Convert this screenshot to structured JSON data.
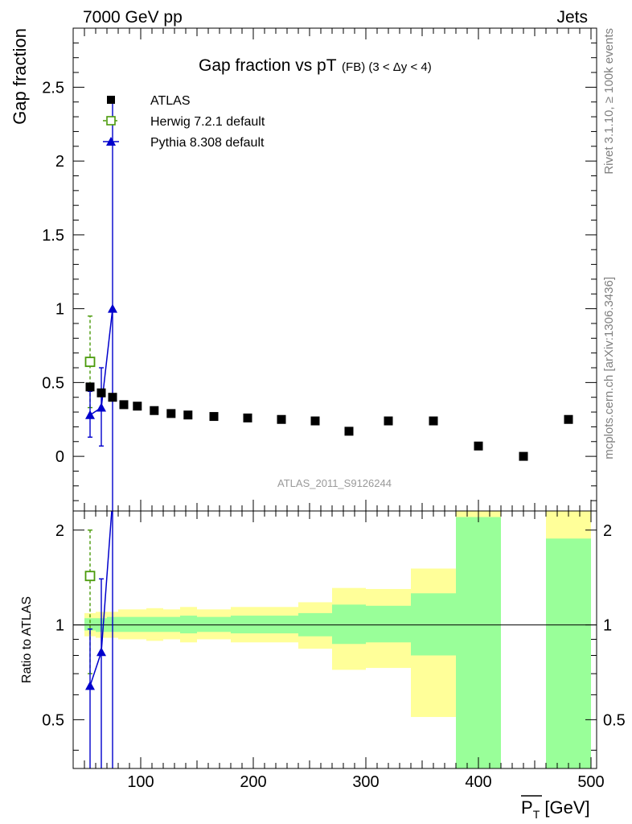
{
  "header": {
    "left": "7000 GeV pp",
    "right": "Jets"
  },
  "side_text": {
    "rivet": "Rivet 3.1.10, ≥ 100k events",
    "mcplots": "mcplots.cern.ch [arXiv:1306.3436]"
  },
  "chart_data": [
    {
      "type": "scatter",
      "title": "Gap fraction vs pT",
      "title_suffix": "(FB) (3 < Δy < 4)",
      "ylabel": "Gap fraction",
      "xlim": [
        40,
        505
      ],
      "ylim": [
        -0.37,
        2.9
      ],
      "yticks": [
        0,
        0.5,
        1,
        1.5,
        2,
        2.5
      ],
      "watermark": "ATLAS_2011_S9126244",
      "legend_position": "top-left",
      "series": [
        {
          "name": "ATLAS",
          "marker": "filled-square",
          "color": "#000000",
          "points": [
            {
              "x": 55,
              "y": 0.47
            },
            {
              "x": 65,
              "y": 0.43
            },
            {
              "x": 75,
              "y": 0.4
            },
            {
              "x": 85,
              "y": 0.35
            },
            {
              "x": 97,
              "y": 0.34
            },
            {
              "x": 112,
              "y": 0.31
            },
            {
              "x": 127,
              "y": 0.29
            },
            {
              "x": 142,
              "y": 0.28
            },
            {
              "x": 165,
              "y": 0.27
            },
            {
              "x": 195,
              "y": 0.26
            },
            {
              "x": 225,
              "y": 0.25
            },
            {
              "x": 255,
              "y": 0.24
            },
            {
              "x": 285,
              "y": 0.17
            },
            {
              "x": 320,
              "y": 0.24
            },
            {
              "x": 360,
              "y": 0.24
            },
            {
              "x": 400,
              "y": 0.07
            },
            {
              "x": 440,
              "y": 0.0
            },
            {
              "x": 480,
              "y": 0.25
            }
          ]
        },
        {
          "name": "Herwig 7.2.1 default",
          "marker": "open-square",
          "line": "dashed",
          "color": "#4a9a0a",
          "points": [
            {
              "x": 55,
              "y": 0.64,
              "err_lo": 0.33,
              "err_hi": 0.95
            }
          ]
        },
        {
          "name": "Pythia 8.308 default",
          "marker": "filled-triangle",
          "line": "solid",
          "color": "#0000cc",
          "points": [
            {
              "x": 55,
              "y": 0.28,
              "err_lo": 0.13,
              "err_hi": 0.44
            },
            {
              "x": 65,
              "y": 0.33,
              "err_lo": 0.07,
              "err_hi": 0.6
            },
            {
              "x": 75,
              "y": 1.0,
              "err_lo": -0.4,
              "err_hi": 2.41
            }
          ]
        }
      ]
    },
    {
      "type": "area",
      "ylabel": "Ratio to ATLAS",
      "xlabel": "P̅T [GeV]",
      "xlim": [
        40,
        505
      ],
      "ylim": [
        0.35,
        2.3
      ],
      "yticks": [
        0.5,
        1,
        2
      ],
      "xticks": [
        100,
        200,
        300,
        400,
        500
      ],
      "reference_line": 1,
      "uncertainty_bands": [
        {
          "x0": 50,
          "x1": 60,
          "green": [
            0.96,
            1.05
          ],
          "yellow": [
            0.92,
            1.09
          ]
        },
        {
          "x0": 60,
          "x1": 70,
          "green": [
            0.95,
            1.05
          ],
          "yellow": [
            0.91,
            1.1
          ]
        },
        {
          "x0": 70,
          "x1": 80,
          "green": [
            0.95,
            1.06
          ],
          "yellow": [
            0.91,
            1.1
          ]
        },
        {
          "x0": 80,
          "x1": 90,
          "green": [
            0.95,
            1.06
          ],
          "yellow": [
            0.9,
            1.12
          ]
        },
        {
          "x0": 90,
          "x1": 105,
          "green": [
            0.95,
            1.06
          ],
          "yellow": [
            0.9,
            1.12
          ]
        },
        {
          "x0": 105,
          "x1": 120,
          "green": [
            0.95,
            1.06
          ],
          "yellow": [
            0.89,
            1.13
          ]
        },
        {
          "x0": 120,
          "x1": 135,
          "green": [
            0.95,
            1.06
          ],
          "yellow": [
            0.9,
            1.12
          ]
        },
        {
          "x0": 135,
          "x1": 150,
          "green": [
            0.94,
            1.07
          ],
          "yellow": [
            0.88,
            1.14
          ]
        },
        {
          "x0": 150,
          "x1": 180,
          "green": [
            0.95,
            1.06
          ],
          "yellow": [
            0.9,
            1.12
          ]
        },
        {
          "x0": 180,
          "x1": 210,
          "green": [
            0.94,
            1.07
          ],
          "yellow": [
            0.88,
            1.14
          ]
        },
        {
          "x0": 210,
          "x1": 240,
          "green": [
            0.94,
            1.07
          ],
          "yellow": [
            0.88,
            1.14
          ]
        },
        {
          "x0": 240,
          "x1": 270,
          "green": [
            0.92,
            1.09
          ],
          "yellow": [
            0.84,
            1.18
          ]
        },
        {
          "x0": 270,
          "x1": 300,
          "green": [
            0.87,
            1.16
          ],
          "yellow": [
            0.72,
            1.31
          ]
        },
        {
          "x0": 300,
          "x1": 340,
          "green": [
            0.88,
            1.15
          ],
          "yellow": [
            0.73,
            1.3
          ]
        },
        {
          "x0": 340,
          "x1": 380,
          "green": [
            0.8,
            1.26
          ],
          "yellow": [
            0.51,
            1.51
          ]
        },
        {
          "x0": 380,
          "x1": 420,
          "green": [
            0.3,
            2.2
          ],
          "yellow": [
            0.3,
            2.5
          ]
        },
        {
          "x0": 460,
          "x1": 500,
          "green": [
            0.3,
            1.88
          ],
          "yellow": [
            0.3,
            2.5
          ]
        }
      ],
      "series": [
        {
          "name": "Herwig 7.2.1 default",
          "marker": "open-square",
          "line": "dashed",
          "color": "#4a9a0a",
          "points": [
            {
              "x": 55,
              "y": 1.43,
              "err_lo": 0.7,
              "err_hi": 2.0
            }
          ]
        },
        {
          "name": "Pythia 8.308 default",
          "marker": "filled-triangle",
          "line": "solid",
          "color": "#0000cc",
          "points": [
            {
              "x": 55,
              "y": 0.64,
              "err_lo": 0.2,
              "err_hi": 0.97
            },
            {
              "x": 65,
              "y": 0.82,
              "err_lo": 0.2,
              "err_hi": 1.4
            },
            {
              "x": 75,
              "y": 2.5,
              "err_lo": 0.2,
              "err_hi": 2.5
            }
          ]
        }
      ]
    }
  ]
}
